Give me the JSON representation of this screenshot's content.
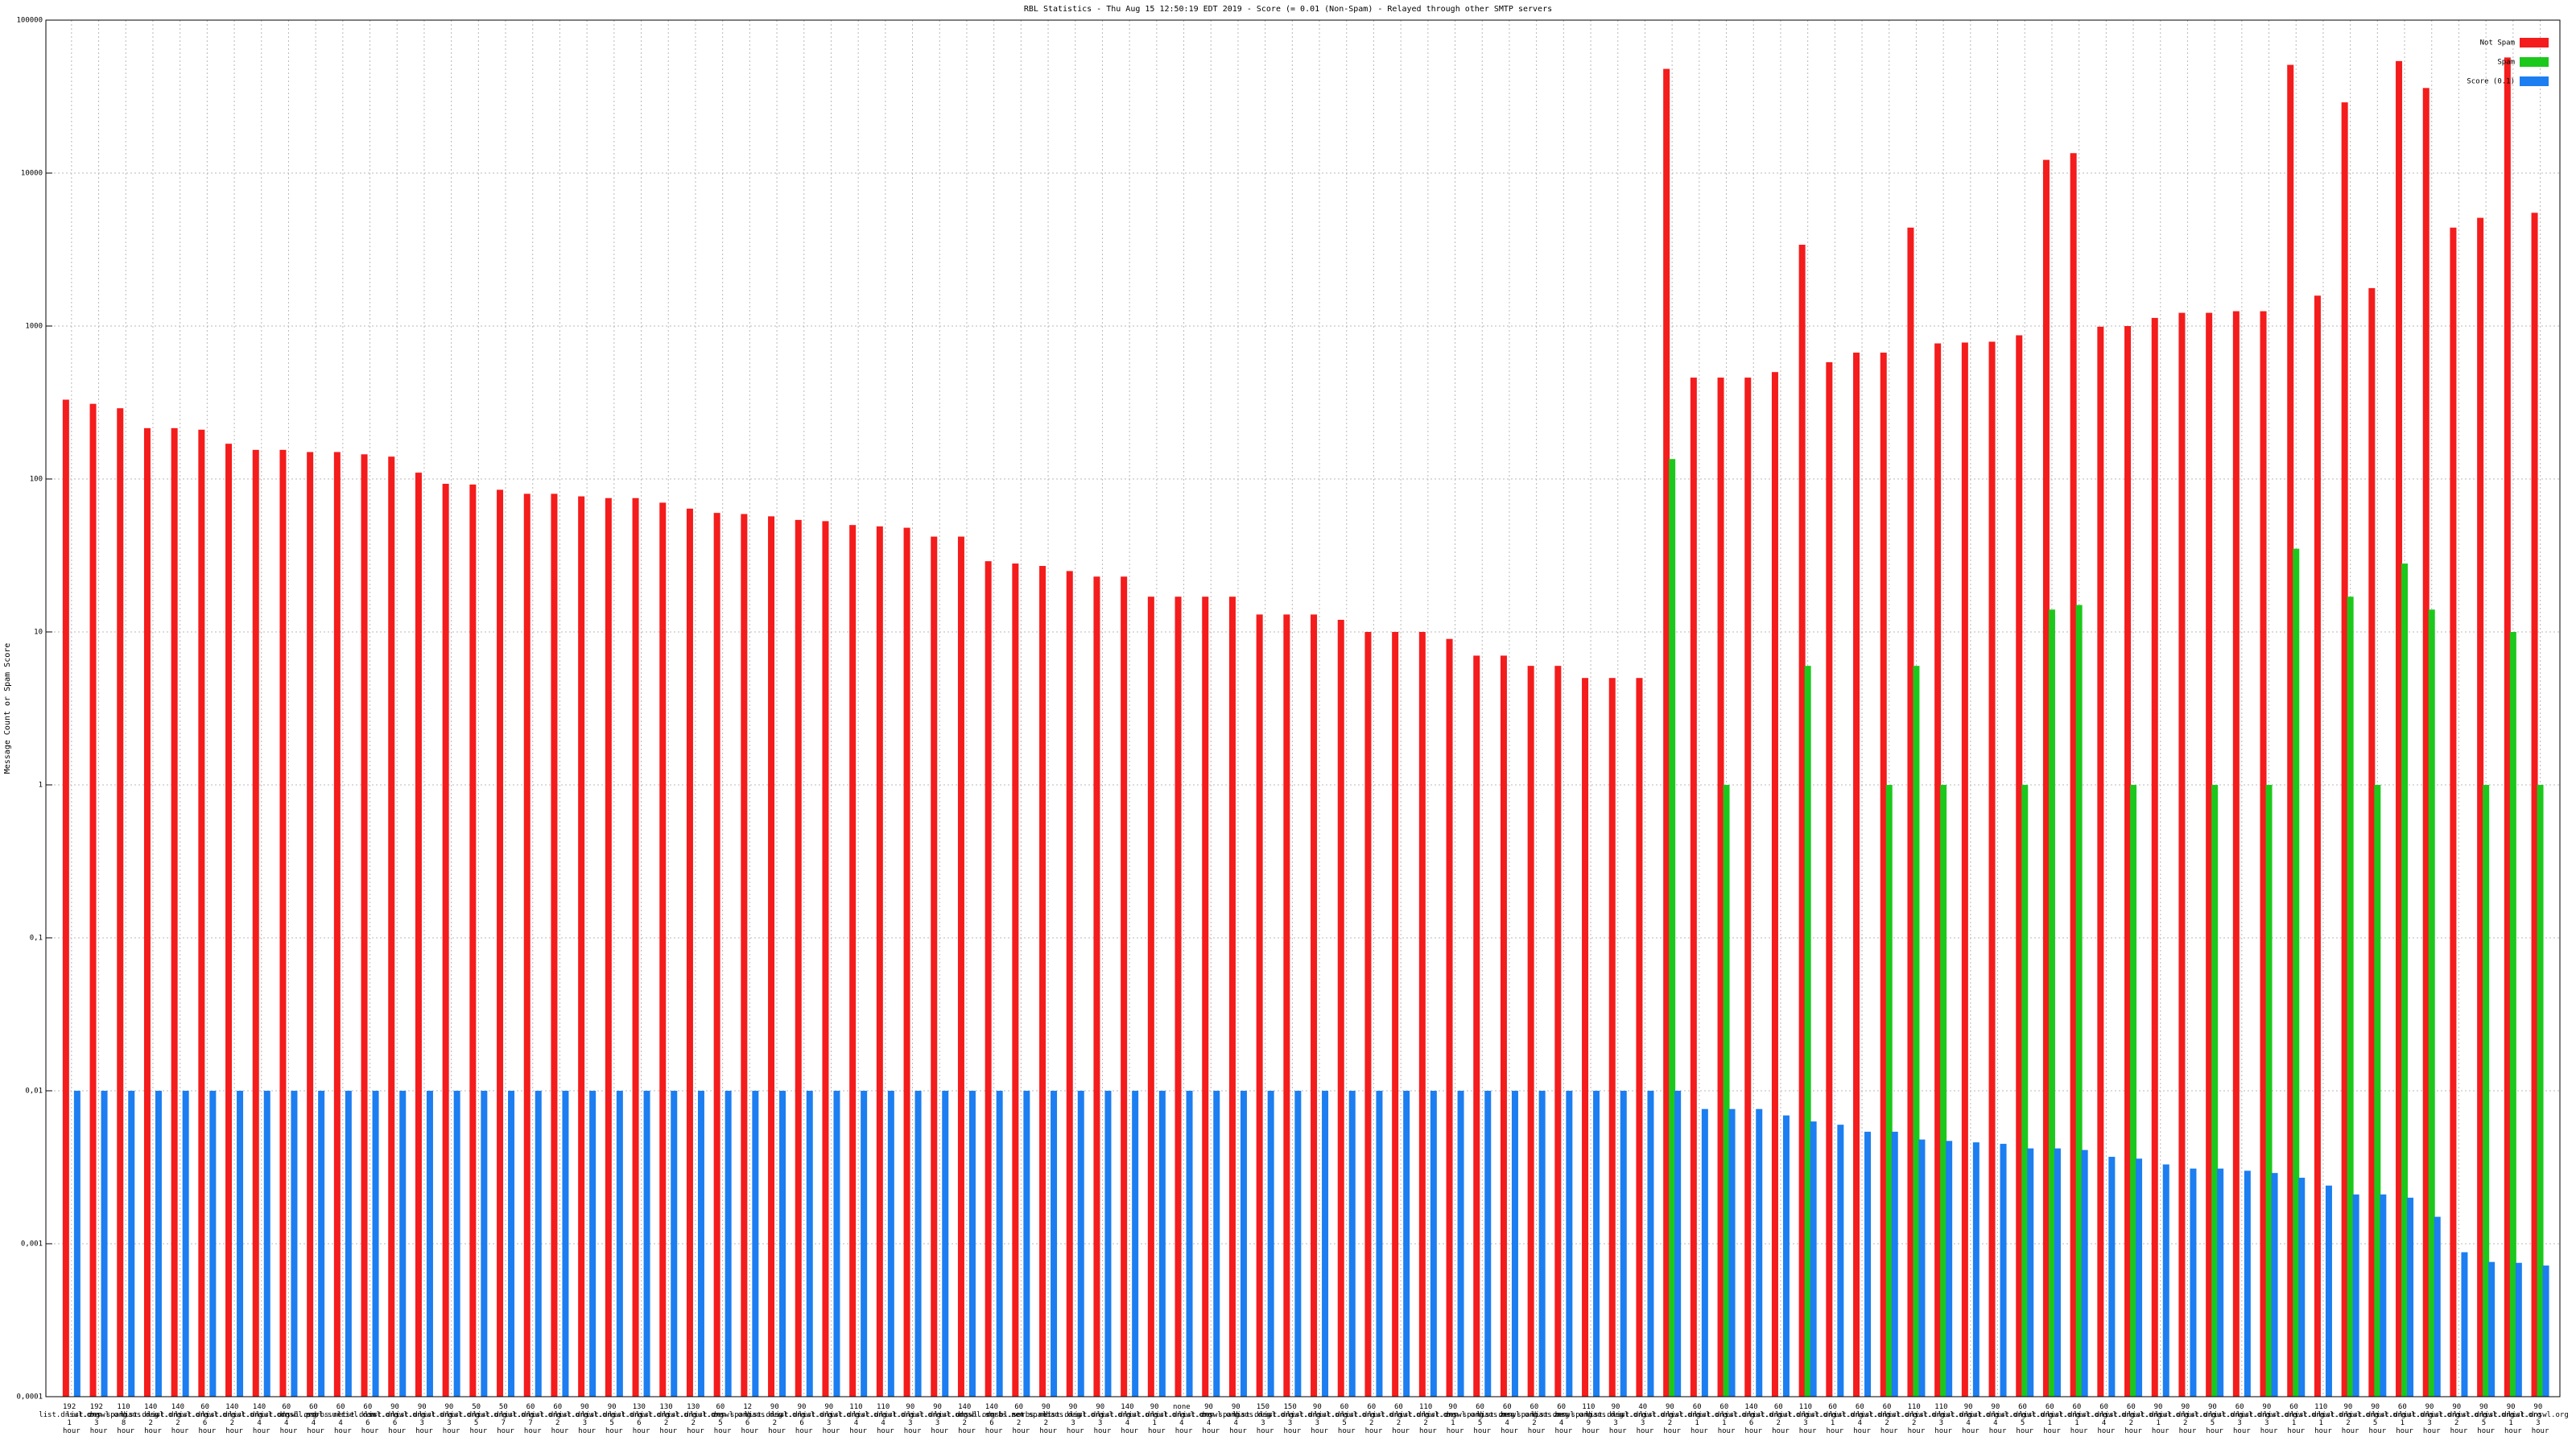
{
  "chart_data": {
    "type": "bar",
    "title": "RBL Statistics - Thu Aug 15 12:50:19 EDT 2019 - Score (= 0.01 (Non-Spam) - Relayed through other SMTP servers",
    "y_label": "Message Count or Spam Score",
    "log_scale": true,
    "grid": true,
    "legend": "upper right",
    "ylim": [
      0.0001,
      100000
    ],
    "yticks": [
      {
        "value": 0.0001,
        "label": "0,0001"
      },
      {
        "value": 0.001,
        "label": "0,001"
      },
      {
        "value": 0.01,
        "label": "0,01"
      },
      {
        "value": 0.1,
        "label": "0,1"
      },
      1,
      10,
      100,
      1000,
      10000,
      100000
    ],
    "categories": [
      "192 list.dnswl.org 1 hour",
      "192 list.dnswl.org 3 hour",
      "110 zen.spamhaus.org 8 hour",
      "140 list.dnswl.org 2 hour",
      "140 list.dnswl.org 2 hour",
      "60 list.dnswl.org 6 hour",
      "140 list.dnswl.org 2 hour",
      "140 list.dnswl.org 4 hour",
      "60 list.dnswl.org 4 hour",
      "60 dnsbl.sorbs.net 4 hour",
      "60 psbl.surriel.com 4 hour",
      "60 list.dnswl.org 6 hour",
      "90 list.dnswl.org 6 hour",
      "90 list.dnswl.org 3 hour",
      "90 list.dnswl.org 3 hour",
      "50 list.dnswl.org 5 hour",
      "50 list.dnswl.org 7 hour",
      "60 list.dnswl.org 7 hour",
      "60 list.dnswl.org 2 hour",
      "90 list.dnswl.org 3 hour",
      "90 list.dnswl.org 5 hour",
      "130 list.dnswl.org 6 hour",
      "130 list.dnswl.org 2 hour",
      "130 list.dnswl.org 2 hour",
      "60 list.dnswl.org 5 hour",
      "12 zen.spamhaus.org 6 hour",
      "90 list.dnswl.org 2 hour",
      "90 list.dnswl.org 6 hour",
      "90 list.dnswl.org 3 hour",
      "110 list.dnswl.org 4 hour",
      "110 list.dnswl.org 4 hour",
      "90 list.dnswl.org 3 hour",
      "90 list.dnswl.org 3 hour",
      "140 list.dnswl.org 2 hour",
      "140 dnsbl.sorbs.net 6 hour",
      "60 dnsbl.sorbs.net 2 hour",
      "90 zen.spamhaus.org 2 hour",
      "90 list.dnswl.org 3 hour",
      "90 list.dnswl.org 3 hour",
      "140 list.dnswl.org 4 hour",
      "90 list.dnswl.org 1 hour",
      "none list.dnswl.org 4 hour",
      "90 list.dnswl.org 4 hour",
      "90 zen.spamhaus.org 4 hour",
      "150 list.dnswl.org 3 hour",
      "150 list.dnswl.org 3 hour",
      "90 list.dnswl.org 3 hour",
      "60 list.dnswl.org 5 hour",
      "60 list.dnswl.org 2 hour",
      "60 list.dnswl.org 2 hour",
      "110 list.dnswl.org 2 hour",
      "90 list.dnswl.org 1 hour",
      "60 zen.spamhaus.org 5 hour",
      "60 list.dnswl.org 4 hour",
      "60 zen.spamhaus.org 2 hour",
      "60 list.dnswl.org 4 hour",
      "110 zen.spamhaus.org 9 hour",
      "90 list.dnswl.org 3 hour",
      "40 list.dnswl.org 3 hour",
      "90 list.dnswl.org 2 hour",
      "60 list.dnswl.org 1 hour",
      "60 list.dnswl.org 1 hour",
      "140 list.dnswl.org 6 hour",
      "60 list.dnswl.org 2 hour",
      "110 list.dnswl.org 3 hour",
      "60 list.dnswl.org 1 hour",
      "60 list.dnswl.org 4 hour",
      "60 list.dnswl.org 2 hour",
      "110 list.dnswl.org 2 hour",
      "110 list.dnswl.org 3 hour",
      "90 list.dnswl.org 4 hour",
      "90 list.dnswl.org 4 hour",
      "60 list.dnswl.org 5 hour",
      "60 list.dnswl.org 1 hour",
      "60 list.dnswl.org 1 hour",
      "60 list.dnswl.org 4 hour",
      "60 list.dnswl.org 2 hour",
      "90 list.dnswl.org 1 hour",
      "90 list.dnswl.org 2 hour",
      "90 list.dnswl.org 5 hour",
      "60 list.dnswl.org 3 hour",
      "90 list.dnswl.org 3 hour",
      "60 list.dnswl.org 1 hour",
      "110 list.dnswl.org 1 hour",
      "90 list.dnswl.org 2 hour",
      "90 list.dnswl.org 5 hour",
      "60 list.dnswl.org 1 hour",
      "90 list.dnswl.org 3 hour",
      "90 list.dnswl.org 2 hour",
      "90 list.dnswl.org 5 hour",
      "90 list.dnswl.org 1 hour",
      "90 list.dnswl.org 3 hour"
    ],
    "series": [
      {
        "name": "Not Spam",
        "color": "#f41c1c",
        "values": [
          330,
          310,
          290,
          215,
          215,
          210,
          170,
          155,
          155,
          150,
          150,
          145,
          140,
          110,
          93,
          92,
          85,
          80,
          80,
          77,
          75,
          75,
          70,
          64,
          60,
          59,
          57,
          54,
          53,
          50,
          49,
          48,
          42,
          42,
          29,
          28,
          27,
          25,
          23,
          23,
          17,
          17,
          17,
          17,
          13,
          13,
          13,
          12,
          10,
          10,
          10,
          9,
          7,
          7,
          6,
          6,
          5,
          5,
          5,
          48000,
          460,
          460,
          460,
          500,
          3400,
          580,
          670,
          670,
          4400,
          770,
          780,
          790,
          870,
          12200,
          13500,
          990,
          1000,
          1130,
          1220,
          1220,
          1250,
          1250,
          51000,
          1580,
          29000,
          1770,
          54000,
          36000,
          4400,
          5100,
          57000,
          5500
        ]
      },
      {
        "name": "Spam",
        "color": "#1cc81c",
        "values": [
          null,
          null,
          null,
          null,
          null,
          null,
          null,
          null,
          null,
          null,
          null,
          null,
          null,
          null,
          null,
          null,
          null,
          null,
          null,
          null,
          null,
          null,
          null,
          null,
          null,
          null,
          null,
          null,
          null,
          null,
          null,
          null,
          null,
          null,
          null,
          null,
          null,
          null,
          null,
          null,
          null,
          null,
          null,
          null,
          null,
          null,
          null,
          null,
          null,
          null,
          null,
          null,
          null,
          null,
          null,
          null,
          null,
          null,
          null,
          135,
          null,
          1,
          null,
          null,
          6,
          null,
          null,
          1,
          6,
          1,
          null,
          null,
          1,
          14,
          15,
          null,
          1,
          null,
          null,
          1,
          null,
          1,
          35,
          null,
          17,
          1,
          28,
          14,
          null,
          1,
          10,
          1
        ]
      },
      {
        "name": "Score (0.1)",
        "color": "#1c7ef0",
        "values": [
          0.01,
          0.01,
          0.01,
          0.01,
          0.01,
          0.01,
          0.01,
          0.01,
          0.01,
          0.01,
          0.01,
          0.01,
          0.01,
          0.01,
          0.01,
          0.01,
          0.01,
          0.01,
          0.01,
          0.01,
          0.01,
          0.01,
          0.01,
          0.01,
          0.01,
          0.01,
          0.01,
          0.01,
          0.01,
          0.01,
          0.01,
          0.01,
          0.01,
          0.01,
          0.01,
          0.01,
          0.01,
          0.01,
          0.01,
          0.01,
          0.01,
          0.01,
          0.01,
          0.01,
          0.01,
          0.01,
          0.01,
          0.01,
          0.01,
          0.01,
          0.01,
          0.01,
          0.01,
          0.01,
          0.01,
          0.01,
          0.01,
          0.01,
          0.01,
          0.01,
          0.0076,
          0.0076,
          0.0076,
          0.0069,
          0.0063,
          0.006,
          0.0054,
          0.0054,
          0.0048,
          0.0047,
          0.0046,
          0.0045,
          0.0042,
          0.0042,
          0.0041,
          0.0037,
          0.0036,
          0.0033,
          0.0031,
          0.0031,
          0.003,
          0.0029,
          0.0027,
          0.0024,
          0.0021,
          0.0021,
          0.002,
          0.0015,
          0.00088,
          0.00076,
          0.00075,
          0.00072
        ]
      }
    ]
  }
}
